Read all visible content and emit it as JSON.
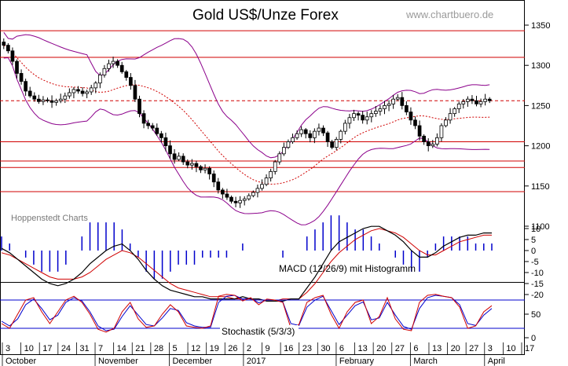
{
  "chart_data": {
    "type": "candlestick",
    "title": "Gold US$/Unze Forex",
    "watermark": "www.chartbuero.de",
    "source": "Hoppenstedt Charts",
    "colors": {
      "price": "#000000",
      "bollinger": "#8b008b",
      "support": "#d00000",
      "ma": "#d00000",
      "macd_line": "#000000",
      "signal": "#d00000",
      "histogram": "#0000cc",
      "stoch_k": "#d00000",
      "stoch_d": "#0000cc",
      "stoch_levels": "#0000cc"
    },
    "price_panel": {
      "ylim": [
        1100,
        1370
      ],
      "yticks": [
        "1350",
        "1300",
        "1250",
        "1200",
        "1150",
        "1100"
      ],
      "horizontal_lines": [
        1343,
        1310,
        1205,
        1181,
        1173,
        1143
      ],
      "dashed_line": 1256,
      "closes": [
        1325,
        1318,
        1305,
        1290,
        1280,
        1268,
        1262,
        1258,
        1255,
        1257,
        1256,
        1254,
        1256,
        1258,
        1262,
        1266,
        1270,
        1268,
        1265,
        1267,
        1272,
        1278,
        1288,
        1296,
        1302,
        1305,
        1300,
        1292,
        1285,
        1275,
        1258,
        1240,
        1228,
        1225,
        1222,
        1215,
        1210,
        1200,
        1190,
        1183,
        1187,
        1180,
        1176,
        1178,
        1174,
        1170,
        1172,
        1165,
        1155,
        1145,
        1140,
        1136,
        1131,
        1129,
        1132,
        1134,
        1138,
        1142,
        1147,
        1152,
        1160,
        1168,
        1180,
        1190,
        1198,
        1205,
        1210,
        1215,
        1220,
        1215,
        1210,
        1218,
        1222,
        1216,
        1205,
        1198,
        1208,
        1218,
        1228,
        1235,
        1240,
        1238,
        1232,
        1236,
        1240,
        1243,
        1246,
        1250,
        1252,
        1258,
        1260,
        1250,
        1242,
        1232,
        1225,
        1212,
        1205,
        1200,
        1202,
        1210,
        1225,
        1232,
        1240,
        1246,
        1252,
        1255,
        1258,
        1256,
        1252,
        1255,
        1258,
        1256
      ]
    },
    "macd_panel": {
      "label": "MACD (12/26/9) mit Histogramm",
      "ylim": [
        -25,
        15
      ],
      "yticks": [
        "10",
        "5",
        "0",
        "-5",
        "-10",
        "-15",
        "-20"
      ],
      "macd": [
        1,
        -1,
        -4,
        -7,
        -10,
        -13,
        -15,
        -16,
        -15,
        -13,
        -10,
        -6,
        -3,
        0,
        2,
        3,
        0,
        -4,
        -9,
        -13,
        -16,
        -18,
        -19,
        -20,
        -21,
        -21,
        -22,
        -22,
        -22,
        -22,
        -21,
        -22,
        -22,
        -23,
        -23,
        -23,
        -22,
        -22,
        -17,
        -12,
        -6,
        0,
        4,
        6,
        8,
        10,
        11,
        11,
        9,
        7,
        4,
        0,
        -3,
        -3,
        -1,
        2,
        4,
        6,
        7,
        7,
        8,
        8
      ],
      "signal": [
        -1,
        -2,
        -4,
        -6,
        -8,
        -10,
        -12,
        -13,
        -13,
        -13,
        -12,
        -10,
        -7,
        -4,
        -2,
        0,
        -1,
        -3,
        -6,
        -9,
        -12,
        -15,
        -17,
        -18,
        -19,
        -20,
        -21,
        -21,
        -21,
        -22,
        -22,
        -22,
        -22,
        -23,
        -23,
        -22,
        -22,
        -22,
        -19,
        -15,
        -10,
        -5,
        -1,
        2,
        5,
        7,
        9,
        10,
        9,
        8,
        6,
        3,
        0,
        -2,
        -2,
        0,
        2,
        4,
        5,
        6,
        7,
        7
      ]
    },
    "stoch_panel": {
      "label": "Stochastik (5/3/3)",
      "ylim": [
        0,
        100
      ],
      "yticks": [
        "50",
        "0"
      ],
      "levels": [
        80,
        20
      ],
      "k": [
        30,
        20,
        50,
        80,
        85,
        55,
        30,
        55,
        80,
        88,
        75,
        50,
        18,
        12,
        20,
        55,
        75,
        40,
        22,
        25,
        50,
        70,
        55,
        25,
        22,
        20,
        25,
        88,
        92,
        90,
        78,
        85,
        70,
        82,
        80,
        75,
        20,
        28,
        75,
        85,
        90,
        50,
        20,
        55,
        75,
        80,
        30,
        45,
        85,
        40,
        18,
        15,
        75,
        90,
        92,
        88,
        85,
        65,
        20,
        25,
        55,
        68
      ],
      "d": [
        35,
        25,
        40,
        70,
        82,
        62,
        38,
        48,
        75,
        85,
        78,
        55,
        25,
        15,
        18,
        45,
        68,
        48,
        28,
        25,
        42,
        62,
        58,
        32,
        25,
        22,
        22,
        75,
        88,
        90,
        82,
        84,
        74,
        80,
        80,
        76,
        30,
        26,
        65,
        80,
        88,
        58,
        28,
        48,
        68,
        76,
        38,
        42,
        75,
        48,
        24,
        18,
        62,
        85,
        90,
        88,
        85,
        70,
        30,
        26,
        48,
        62
      ]
    },
    "x_axis": {
      "day_ticks": [
        "3",
        "10",
        "17",
        "24",
        "31",
        "7",
        "14",
        "21",
        "28",
        "5",
        "12",
        "19",
        "26",
        "2",
        "9",
        "16",
        "23",
        "30",
        "6",
        "13",
        "20",
        "27",
        "6",
        "13",
        "20",
        "27",
        "3",
        "10",
        "17"
      ],
      "months": [
        "October",
        "November",
        "December",
        "2017",
        "February",
        "March",
        "April"
      ]
    }
  }
}
